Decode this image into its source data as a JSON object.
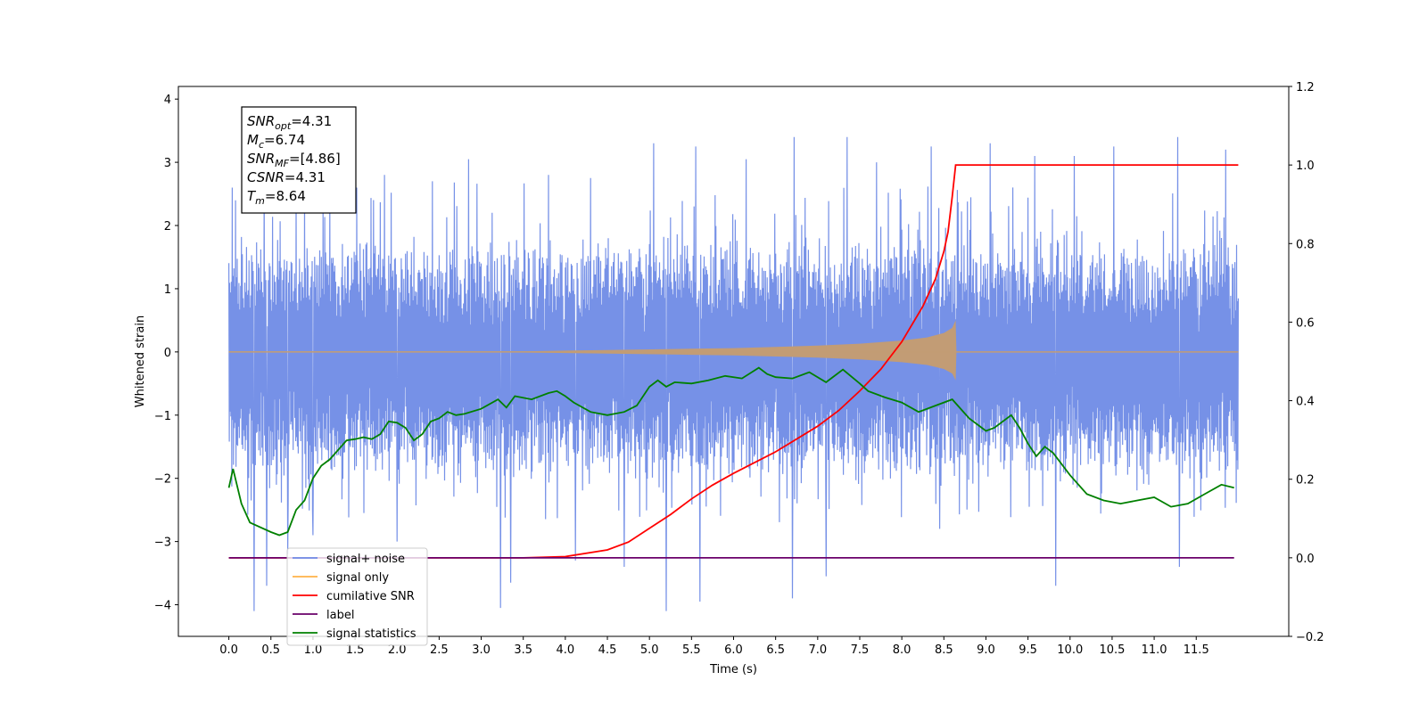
{
  "chart_data": {
    "type": "line",
    "title": "",
    "xlabel": "Time (s)",
    "ylabel": "Whitened strain",
    "xlim": [
      -0.6,
      12.6
    ],
    "ylim": [
      -4.5,
      4.2
    ],
    "y2lim": [
      -0.2,
      1.2
    ],
    "x_ticks": [
      "0.0",
      "0.5",
      "1.0",
      "1.5",
      "2.0",
      "2.5",
      "3.0",
      "3.5",
      "4.0",
      "4.5",
      "5.0",
      "5.5",
      "6.0",
      "6.5",
      "7.0",
      "7.5",
      "8.0",
      "8.5",
      "9.0",
      "9.5",
      "10.0",
      "10.5",
      "11.0",
      "11.5"
    ],
    "y_ticks": [
      "4",
      "3",
      "2",
      "1",
      "0",
      "−1",
      "−2",
      "−3",
      "−4"
    ],
    "y2_ticks": [
      "1.2",
      "1.0",
      "0.8",
      "0.6",
      "0.4",
      "0.2",
      "0.0",
      "−0.2"
    ],
    "grid": false,
    "legend_position": "lower-left",
    "annotation": {
      "lines": [
        {
          "sym": "SNR",
          "sub": "opt",
          "val": "=4.31"
        },
        {
          "sym": "M",
          "sub": "c",
          "val": "=6.74"
        },
        {
          "sym": "SNR",
          "sub": "MF",
          "val": "=[4.86]"
        },
        {
          "sym": "CSNR",
          "sub": "",
          "val": "=4.31"
        },
        {
          "sym": "T",
          "sub": "m",
          "val": "=8.64"
        }
      ]
    },
    "noise_series": {
      "name": "signal+ noise",
      "color": "#6f8be6",
      "axis": "left",
      "x_range": [
        0.0,
        12.0
      ],
      "band_upper": 1.4,
      "band_lower": -1.6,
      "peaks": [
        {
          "x": 0.04,
          "y": 2.6
        },
        {
          "x": 0.08,
          "y": 2.4
        },
        {
          "x": 0.42,
          "y": 2.85
        },
        {
          "x": 0.9,
          "y": 2.5
        },
        {
          "x": 1.52,
          "y": 2.6
        },
        {
          "x": 1.85,
          "y": 2.8
        },
        {
          "x": 2.42,
          "y": 2.7
        },
        {
          "x": 2.85,
          "y": 3.05
        },
        {
          "x": 3.35,
          "y": 2.6
        },
        {
          "x": 3.8,
          "y": 2.8
        },
        {
          "x": 4.3,
          "y": 2.75
        },
        {
          "x": 5.05,
          "y": 3.3
        },
        {
          "x": 5.55,
          "y": 3.25
        },
        {
          "x": 6.15,
          "y": 3.05
        },
        {
          "x": 6.72,
          "y": 3.4
        },
        {
          "x": 7.35,
          "y": 3.4
        },
        {
          "x": 7.7,
          "y": 3.0
        },
        {
          "x": 8.35,
          "y": 3.25
        },
        {
          "x": 9.05,
          "y": 3.3
        },
        {
          "x": 9.58,
          "y": 3.1
        },
        {
          "x": 10.05,
          "y": 3.1
        },
        {
          "x": 10.52,
          "y": 3.25
        },
        {
          "x": 11.28,
          "y": 3.4
        },
        {
          "x": 11.85,
          "y": 3.2
        }
      ],
      "troughs": [
        {
          "x": 0.3,
          "y": -4.1
        },
        {
          "x": 0.45,
          "y": -3.7
        },
        {
          "x": 0.7,
          "y": -3.2
        },
        {
          "x": 3.23,
          "y": -4.05
        },
        {
          "x": 3.35,
          "y": -3.65
        },
        {
          "x": 4.12,
          "y": -3.3
        },
        {
          "x": 4.7,
          "y": -3.4
        },
        {
          "x": 5.2,
          "y": -4.1
        },
        {
          "x": 5.6,
          "y": -3.95
        },
        {
          "x": 6.7,
          "y": -3.9
        },
        {
          "x": 7.1,
          "y": -3.55
        },
        {
          "x": 9.83,
          "y": -3.7
        },
        {
          "x": 11.3,
          "y": -3.4
        },
        {
          "x": 1.0,
          "y": -2.9
        },
        {
          "x": 2.0,
          "y": -3.0
        },
        {
          "x": 8.45,
          "y": -2.8
        }
      ]
    },
    "signal_series": {
      "name": "signal only",
      "color": "#ffb347",
      "fill_color": "#c29c75",
      "axis": "left",
      "x": [
        0.0,
        3.5,
        4.5,
        5.5,
        6.0,
        6.5,
        7.0,
        7.5,
        8.0,
        8.3,
        8.5,
        8.6,
        8.64,
        8.65,
        12.0
      ],
      "amplitude": [
        0.01,
        0.01,
        0.03,
        0.05,
        0.06,
        0.08,
        0.1,
        0.13,
        0.18,
        0.23,
        0.3,
        0.38,
        0.5,
        0.0,
        0.0
      ]
    },
    "series": [
      {
        "name": "cumilative SNR",
        "color": "#ff0000",
        "axis": "right",
        "x": [
          0.0,
          3.5,
          4.0,
          4.5,
          4.75,
          5.0,
          5.25,
          5.5,
          5.75,
          6.0,
          6.5,
          7.0,
          7.25,
          7.5,
          7.75,
          8.0,
          8.25,
          8.4,
          8.5,
          8.55,
          8.6,
          8.64,
          9.0,
          12.0
        ],
        "values": [
          0.0,
          0.0,
          0.003,
          0.02,
          0.04,
          0.075,
          0.11,
          0.15,
          0.185,
          0.215,
          0.27,
          0.335,
          0.375,
          0.425,
          0.48,
          0.55,
          0.64,
          0.71,
          0.78,
          0.83,
          0.92,
          1.0,
          1.0,
          1.0
        ]
      },
      {
        "name": "label",
        "color": "#6a006a",
        "axis": "right",
        "x": [
          0.0,
          11.95
        ],
        "values": [
          0.0,
          0.0
        ]
      },
      {
        "name": "signal statistics",
        "color": "#008000",
        "axis": "left",
        "x": [
          0.0,
          0.05,
          0.15,
          0.25,
          0.5,
          0.6,
          0.7,
          0.8,
          0.9,
          1.0,
          1.1,
          1.2,
          1.3,
          1.4,
          1.5,
          1.6,
          1.7,
          1.8,
          1.9,
          2.0,
          2.1,
          2.2,
          2.3,
          2.4,
          2.5,
          2.6,
          2.7,
          2.8,
          3.0,
          3.2,
          3.3,
          3.4,
          3.6,
          3.8,
          3.9,
          4.0,
          4.1,
          4.3,
          4.5,
          4.7,
          4.85,
          5.0,
          5.1,
          5.2,
          5.3,
          5.5,
          5.7,
          5.9,
          6.1,
          6.3,
          6.4,
          6.5,
          6.7,
          6.9,
          7.1,
          7.3,
          7.5,
          7.6,
          7.8,
          8.0,
          8.2,
          8.4,
          8.6,
          8.8,
          8.9,
          9.0,
          9.1,
          9.3,
          9.4,
          9.5,
          9.6,
          9.7,
          9.8,
          10.0,
          10.2,
          10.4,
          10.6,
          10.8,
          11.0,
          11.2,
          11.4,
          11.6,
          11.8,
          11.95
        ],
        "values": [
          -2.15,
          -1.85,
          -2.4,
          -2.7,
          -2.85,
          -2.9,
          -2.85,
          -2.5,
          -2.35,
          -2.0,
          -1.8,
          -1.7,
          -1.55,
          -1.4,
          -1.38,
          -1.35,
          -1.38,
          -1.3,
          -1.1,
          -1.12,
          -1.2,
          -1.4,
          -1.3,
          -1.1,
          -1.05,
          -0.95,
          -1.0,
          -0.98,
          -0.9,
          -0.75,
          -0.88,
          -0.7,
          -0.75,
          -0.65,
          -0.62,
          -0.7,
          -0.8,
          -0.95,
          -1.0,
          -0.95,
          -0.85,
          -0.55,
          -0.45,
          -0.55,
          -0.48,
          -0.5,
          -0.45,
          -0.38,
          -0.42,
          -0.25,
          -0.35,
          -0.4,
          -0.42,
          -0.32,
          -0.48,
          -0.28,
          -0.5,
          -0.62,
          -0.72,
          -0.8,
          -0.95,
          -0.85,
          -0.75,
          -1.05,
          -1.15,
          -1.25,
          -1.2,
          -1.0,
          -1.2,
          -1.45,
          -1.65,
          -1.5,
          -1.6,
          -1.95,
          -2.25,
          -2.35,
          -2.4,
          -2.35,
          -2.3,
          -2.45,
          -2.4,
          -2.25,
          -2.1,
          -2.15
        ]
      }
    ],
    "legend": [
      {
        "label": "signal+ noise",
        "color": "#6f8be6"
      },
      {
        "label": "signal only",
        "color": "#ffb347"
      },
      {
        "label": "cumilative SNR",
        "color": "#ff0000"
      },
      {
        "label": "label",
        "color": "#6a006a"
      },
      {
        "label": "signal statistics",
        "color": "#008000"
      }
    ]
  }
}
